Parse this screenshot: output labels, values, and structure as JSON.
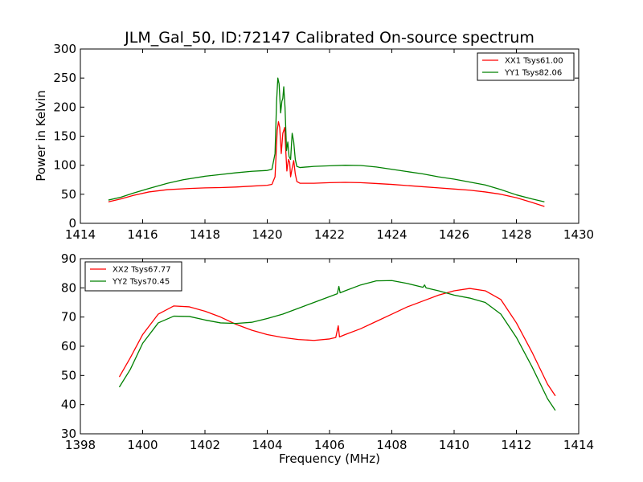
{
  "chart_data": [
    {
      "type": "line",
      "title": "JLM_Gal_50, ID:72147 Calibrated On-source spectrum",
      "xlabel": "",
      "ylabel": "Power in Kelvin",
      "xlim": [
        1414,
        1430
      ],
      "ylim": [
        0,
        300
      ],
      "xticks": [
        "1414",
        "1416",
        "1418",
        "1420",
        "1422",
        "1424",
        "1426",
        "1428",
        "1430"
      ],
      "yticks": [
        "0",
        "50",
        "100",
        "150",
        "200",
        "250",
        "300"
      ],
      "grid": false,
      "legend_position": "top-right",
      "series": [
        {
          "name": "XX1 Tsys61.00",
          "color": "#ff0000",
          "points": [
            [
              1414.9,
              37
            ],
            [
              1415.3,
              42
            ],
            [
              1415.7,
              48
            ],
            [
              1416.2,
              54
            ],
            [
              1416.8,
              58
            ],
            [
              1417.5,
              60
            ],
            [
              1418.0,
              61
            ],
            [
              1418.5,
              61.5
            ],
            [
              1419.0,
              62.5
            ],
            [
              1419.5,
              64
            ],
            [
              1420.0,
              65.5
            ],
            [
              1420.15,
              67
            ],
            [
              1420.25,
              80
            ],
            [
              1420.32,
              160
            ],
            [
              1420.36,
              175
            ],
            [
              1420.4,
              165
            ],
            [
              1420.45,
              120
            ],
            [
              1420.5,
              155
            ],
            [
              1420.53,
              160
            ],
            [
              1420.56,
              165
            ],
            [
              1420.6,
              120
            ],
            [
              1420.63,
              90
            ],
            [
              1420.68,
              110
            ],
            [
              1420.72,
              105
            ],
            [
              1420.75,
              80
            ],
            [
              1420.8,
              95
            ],
            [
              1420.85,
              108
            ],
            [
              1420.9,
              85
            ],
            [
              1420.95,
              72
            ],
            [
              1421.05,
              69
            ],
            [
              1421.5,
              69
            ],
            [
              1422.0,
              70
            ],
            [
              1422.5,
              70.5
            ],
            [
              1423.0,
              70
            ],
            [
              1423.5,
              68.5
            ],
            [
              1424.0,
              67
            ],
            [
              1424.5,
              65
            ],
            [
              1425.0,
              63
            ],
            [
              1425.5,
              61
            ],
            [
              1426.0,
              59
            ],
            [
              1426.5,
              57
            ],
            [
              1427.0,
              54
            ],
            [
              1427.5,
              50
            ],
            [
              1428.0,
              44
            ],
            [
              1428.5,
              36
            ],
            [
              1428.9,
              29
            ]
          ]
        },
        {
          "name": "YY1 Tsys82.06",
          "color": "#008000",
          "points": [
            [
              1414.9,
              40
            ],
            [
              1415.3,
              45
            ],
            [
              1415.7,
              52
            ],
            [
              1416.2,
              60
            ],
            [
              1416.8,
              69
            ],
            [
              1417.3,
              75
            ],
            [
              1418.0,
              81
            ],
            [
              1418.5,
              84
            ],
            [
              1419.0,
              87
            ],
            [
              1419.5,
              89.5
            ],
            [
              1420.0,
              91
            ],
            [
              1420.15,
              93
            ],
            [
              1420.25,
              120
            ],
            [
              1420.3,
              210
            ],
            [
              1420.34,
              250
            ],
            [
              1420.38,
              240
            ],
            [
              1420.43,
              190
            ],
            [
              1420.47,
              210
            ],
            [
              1420.5,
              215
            ],
            [
              1420.53,
              235
            ],
            [
              1420.57,
              200
            ],
            [
              1420.62,
              125
            ],
            [
              1420.66,
              140
            ],
            [
              1420.7,
              115
            ],
            [
              1420.75,
              110
            ],
            [
              1420.8,
              155
            ],
            [
              1420.85,
              140
            ],
            [
              1420.9,
              110
            ],
            [
              1420.95,
              98
            ],
            [
              1421.05,
              96
            ],
            [
              1421.5,
              98
            ],
            [
              1422.0,
              99
            ],
            [
              1422.5,
              100
            ],
            [
              1423.0,
              99.5
            ],
            [
              1423.5,
              97
            ],
            [
              1424.0,
              93
            ],
            [
              1424.5,
              89
            ],
            [
              1425.0,
              85
            ],
            [
              1425.5,
              80
            ],
            [
              1426.0,
              76
            ],
            [
              1426.5,
              71
            ],
            [
              1427.0,
              66
            ],
            [
              1427.5,
              58
            ],
            [
              1428.0,
              49
            ],
            [
              1428.5,
              42
            ],
            [
              1428.9,
              37
            ]
          ]
        }
      ]
    },
    {
      "type": "line",
      "title": "",
      "xlabel": "Frequency (MHz)",
      "ylabel": "",
      "xlim": [
        1398,
        1414
      ],
      "ylim": [
        30,
        90
      ],
      "xticks": [
        "1398",
        "1400",
        "1402",
        "1404",
        "1406",
        "1408",
        "1410",
        "1412",
        "1414"
      ],
      "yticks": [
        "30",
        "40",
        "50",
        "60",
        "70",
        "80",
        "90"
      ],
      "grid": false,
      "legend_position": "top-left",
      "series": [
        {
          "name": "XX2 Tsys67.77",
          "color": "#ff0000",
          "points": [
            [
              1399.25,
              49.5
            ],
            [
              1399.6,
              56
            ],
            [
              1400.0,
              64
            ],
            [
              1400.5,
              71
            ],
            [
              1401.0,
              73.8
            ],
            [
              1401.5,
              73.5
            ],
            [
              1402.0,
              72
            ],
            [
              1402.5,
              70
            ],
            [
              1403.0,
              67.5
            ],
            [
              1403.5,
              65.5
            ],
            [
              1404.0,
              64
            ],
            [
              1404.5,
              63
            ],
            [
              1405.0,
              62.3
            ],
            [
              1405.5,
              62
            ],
            [
              1406.0,
              62.5
            ],
            [
              1406.2,
              63
            ],
            [
              1406.28,
              67
            ],
            [
              1406.32,
              63.2
            ],
            [
              1406.5,
              64
            ],
            [
              1407.0,
              66
            ],
            [
              1407.5,
              68.5
            ],
            [
              1408.0,
              71
            ],
            [
              1408.5,
              73.5
            ],
            [
              1409.0,
              75.5
            ],
            [
              1409.5,
              77.5
            ],
            [
              1410.0,
              79
            ],
            [
              1410.5,
              79.8
            ],
            [
              1411.0,
              79
            ],
            [
              1411.5,
              76
            ],
            [
              1412.0,
              68
            ],
            [
              1412.5,
              58
            ],
            [
              1413.0,
              47
            ],
            [
              1413.25,
              43
            ]
          ]
        },
        {
          "name": "YY2 Tsys70.45",
          "color": "#008000",
          "points": [
            [
              1399.25,
              46
            ],
            [
              1399.6,
              52
            ],
            [
              1400.0,
              61
            ],
            [
              1400.5,
              68
            ],
            [
              1401.0,
              70.3
            ],
            [
              1401.5,
              70.2
            ],
            [
              1402.0,
              69
            ],
            [
              1402.5,
              68
            ],
            [
              1403.0,
              67.8
            ],
            [
              1403.5,
              68.2
            ],
            [
              1404.0,
              69.5
            ],
            [
              1404.5,
              71
            ],
            [
              1405.0,
              73
            ],
            [
              1405.5,
              75
            ],
            [
              1406.0,
              77
            ],
            [
              1406.25,
              78
            ],
            [
              1406.3,
              80.5
            ],
            [
              1406.34,
              78.3
            ],
            [
              1406.5,
              79
            ],
            [
              1407.0,
              81
            ],
            [
              1407.5,
              82.4
            ],
            [
              1408.0,
              82.5
            ],
            [
              1408.5,
              81.5
            ],
            [
              1409.0,
              80.2
            ],
            [
              1409.05,
              81
            ],
            [
              1409.1,
              80
            ],
            [
              1409.5,
              79
            ],
            [
              1410.0,
              77.5
            ],
            [
              1410.5,
              76.5
            ],
            [
              1411.0,
              75
            ],
            [
              1411.5,
              71
            ],
            [
              1412.0,
              63
            ],
            [
              1412.5,
              53
            ],
            [
              1413.0,
              42
            ],
            [
              1413.25,
              38
            ]
          ]
        }
      ]
    }
  ]
}
